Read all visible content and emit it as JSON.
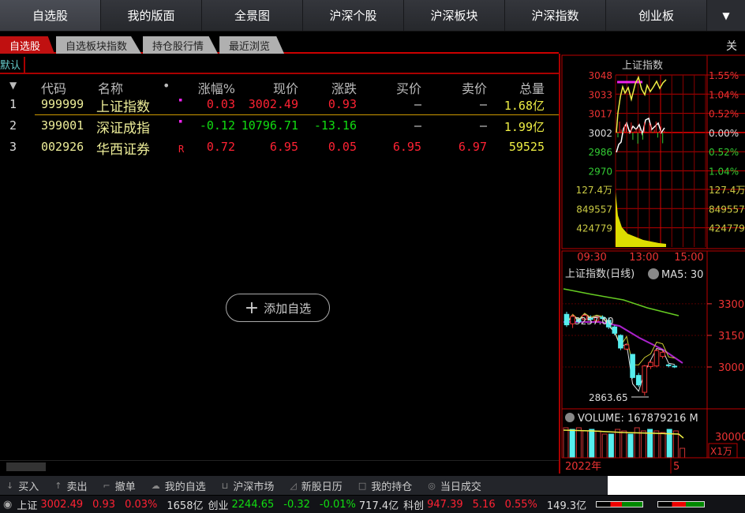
{
  "topnav": {
    "items": [
      "自选股",
      "我的版面",
      "全景图",
      "沪深个股",
      "沪深板块",
      "沪深指数",
      "创业板"
    ],
    "active": 0,
    "more_icon": "triangle-down-icon",
    "more_glyph": "▼"
  },
  "tabs": {
    "items": [
      "自选股",
      "自选板块指数",
      "持仓股行情",
      "最近浏览"
    ],
    "active": 0
  },
  "group_label": "默认",
  "table": {
    "columns": [
      "代码",
      "名称",
      "•",
      "涨幅%",
      "现价",
      "涨跌",
      "买价",
      "卖价",
      "总量"
    ],
    "sort_icon": "▼",
    "rows": [
      {
        "idx": "1",
        "code": "999999",
        "name": "上证指数",
        "flag": "▪",
        "chg_pct": "0.03",
        "price": "3002.49",
        "chg": "0.93",
        "bid": "—",
        "ask": "—",
        "volume": "1.68亿",
        "dir": "up"
      },
      {
        "idx": "2",
        "code": "399001",
        "name": "深证成指",
        "flag": "▪",
        "chg_pct": "-0.12",
        "price": "10796.71",
        "chg": "-13.16",
        "bid": "—",
        "ask": "—",
        "volume": "1.99亿",
        "dir": "down"
      },
      {
        "idx": "3",
        "code": "002926",
        "name": "华西证券",
        "flag": "R",
        "chg_pct": "0.72",
        "price": "6.95",
        "chg": "0.05",
        "bid": "6.95",
        "ask": "6.97",
        "volume": "59525",
        "dir": "up"
      }
    ]
  },
  "add_button": {
    "icon": "+",
    "label": "添加自选"
  },
  "right_panel": {
    "close_label": "关",
    "minute_chart": {
      "title": "上证指数",
      "price_ticks": [
        "3048",
        "3033",
        "3017",
        "3002",
        "2986",
        "2970"
      ],
      "pct_ticks": [
        "1.55%",
        "1.04%",
        "0.52%",
        "0.00%",
        "0.52%",
        "1.04%"
      ],
      "vol_ticks": [
        "127.4万",
        "849557",
        "424779"
      ],
      "time_ticks": [
        "09:30",
        "13:00",
        "15:00"
      ]
    },
    "kline": {
      "title": "上证指数(日线)",
      "ma_label": "MA5: 30",
      "price_ticks": [
        "3300",
        "3150",
        "3000"
      ],
      "high_label": "3257.00",
      "low_label": "2863.65",
      "candles": [
        [
          3250,
          3262,
          3190,
          3200
        ],
        [
          3205,
          3250,
          3185,
          3240
        ],
        [
          3225,
          3235,
          3210,
          3215
        ],
        [
          3225,
          3250,
          3215,
          3245
        ],
        [
          3232,
          3245,
          3220,
          3226
        ],
        [
          3220,
          3240,
          3212,
          3236
        ],
        [
          3236,
          3245,
          3225,
          3230
        ],
        [
          3222,
          3235,
          3180,
          3190
        ],
        [
          3190,
          3198,
          3150,
          3160
        ],
        [
          3150,
          3155,
          3080,
          3090
        ],
        [
          3085,
          3112,
          3080,
          3105
        ],
        [
          3060,
          3062,
          2945,
          2950
        ],
        [
          2960,
          2972,
          2905,
          2915
        ],
        [
          2880,
          3010,
          2864,
          3005
        ],
        [
          3002,
          3030,
          2990,
          3022
        ],
        [
          3005,
          3085,
          2998,
          3078
        ],
        [
          3050,
          3078,
          3040,
          3070
        ],
        [
          3010,
          3015,
          2998,
          3008
        ],
        [
          3004,
          3012,
          2995,
          3002
        ]
      ],
      "volume_label": "VOLUME: 167879216 M",
      "volume_tick": "30000",
      "volume_unit": "X1万",
      "year_label": "2022年",
      "month_label": "5"
    }
  },
  "toolbar": {
    "items": [
      {
        "icon": "buy-icon",
        "label": "买入"
      },
      {
        "icon": "sell-icon",
        "label": "卖出"
      },
      {
        "icon": "cancel-order-icon",
        "label": "撤单"
      },
      {
        "icon": "cloud-icon",
        "label": "我的自选"
      },
      {
        "icon": "market-icon",
        "label": "沪深市场"
      },
      {
        "icon": "calendar-icon",
        "label": "新股日历"
      },
      {
        "icon": "portfolio-icon",
        "label": "我的持仓"
      },
      {
        "icon": "trade-icon",
        "label": "当日成交"
      }
    ]
  },
  "status": {
    "sh": {
      "name": "上证",
      "price": "3002.49",
      "chg": "0.93",
      "pct": "0.03%",
      "amount": "1658亿"
    },
    "cy": {
      "name": "创业",
      "price": "2244.65",
      "chg": "-0.32",
      "pct": "-0.01%",
      "amount": "717.4亿"
    },
    "kc": {
      "name": "科创",
      "price": "947.39",
      "chg": "5.16",
      "pct": "0.55%",
      "amount": "149.3亿"
    }
  },
  "colors": {
    "up": "#ff2233",
    "down": "#11dd11",
    "accent": "#c01010",
    "volume": "#eeee44",
    "candle_down": "#55eeee"
  }
}
